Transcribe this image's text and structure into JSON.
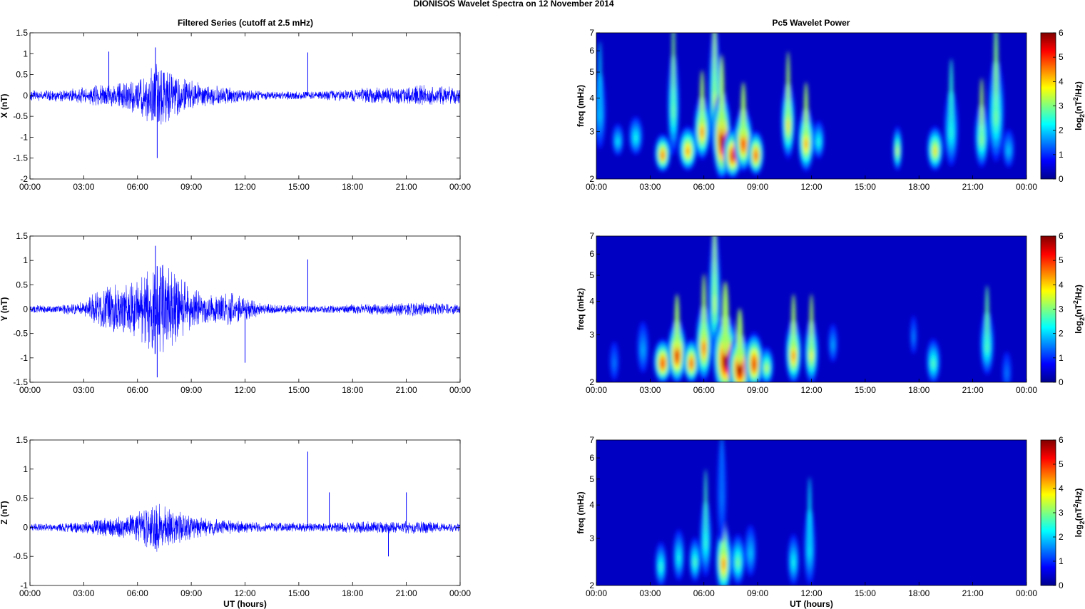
{
  "figure": {
    "title": "DIONISOS Wavelet Spectra on 12 November  2014",
    "left_title": "Filtered Series (cutoff at 2.5 mHz)",
    "right_title": "Pc5 Wavelet Power"
  },
  "chart_data": [
    {
      "type": "line",
      "title": "Filtered Series (cutoff at 2.5 mHz)",
      "ylabel": "X (nT)",
      "xlabel": "",
      "xticklabels": [
        "00:00",
        "03:00",
        "06:00",
        "09:00",
        "12:00",
        "15:00",
        "18:00",
        "21:00",
        "00:00"
      ],
      "xlim_hours": [
        0,
        24
      ],
      "ylim": [
        -2,
        1.5
      ],
      "yticks": [
        -2,
        -1.5,
        -1,
        -0.5,
        0,
        0.5,
        1,
        1.5
      ],
      "color": "#0000ff",
      "series": [
        {
          "x_hours": [
            0,
            1,
            2,
            3,
            4,
            5,
            6,
            7,
            8,
            9,
            10,
            11,
            12,
            13,
            14,
            15,
            16,
            17,
            18,
            19,
            20,
            21,
            22,
            23,
            24
          ],
          "amplitude": [
            0.12,
            0.14,
            0.15,
            0.2,
            0.3,
            0.3,
            0.45,
            0.8,
            0.55,
            0.35,
            0.25,
            0.2,
            0.15,
            0.1,
            0.1,
            0.1,
            0.1,
            0.12,
            0.15,
            0.2,
            0.18,
            0.22,
            0.25,
            0.22,
            0.2
          ]
        }
      ],
      "annotations": [
        {
          "x_hour": 7.1,
          "min": -1.5
        },
        {
          "x_hour": 7.0,
          "max": 1.15
        },
        {
          "x_hour": 15.5,
          "max": 1.03
        },
        {
          "x_hour": 4.4,
          "max": 1.05
        }
      ]
    },
    {
      "type": "line",
      "ylabel": "Y (nT)",
      "xlabel": "",
      "xticklabels": [
        "00:00",
        "03:00",
        "06:00",
        "09:00",
        "12:00",
        "15:00",
        "18:00",
        "21:00",
        "00:00"
      ],
      "xlim_hours": [
        0,
        24
      ],
      "ylim": [
        -1.5,
        1.5
      ],
      "yticks": [
        -1.5,
        -1,
        -0.5,
        0,
        0.5,
        1,
        1.5
      ],
      "color": "#0000ff",
      "series": [
        {
          "x_hours": [
            0,
            1,
            2,
            3,
            4,
            5,
            6,
            7,
            8,
            9,
            10,
            11,
            12,
            13,
            14,
            15,
            16,
            17,
            18,
            19,
            20,
            21,
            22,
            23,
            24
          ],
          "amplitude": [
            0.08,
            0.08,
            0.1,
            0.15,
            0.45,
            0.5,
            0.6,
            1.0,
            0.8,
            0.45,
            0.3,
            0.35,
            0.25,
            0.12,
            0.1,
            0.08,
            0.08,
            0.08,
            0.1,
            0.12,
            0.12,
            0.15,
            0.14,
            0.12,
            0.1
          ]
        }
      ],
      "annotations": [
        {
          "x_hour": 7.1,
          "min": -1.4
        },
        {
          "x_hour": 7.0,
          "max": 1.3
        },
        {
          "x_hour": 15.5,
          "max": 1.02
        },
        {
          "x_hour": 12.0,
          "min": -1.1
        }
      ]
    },
    {
      "type": "line",
      "ylabel": "Z (nT)",
      "xlabel": "UT (hours)",
      "xticklabels": [
        "00:00",
        "03:00",
        "06:00",
        "09:00",
        "12:00",
        "15:00",
        "18:00",
        "21:00",
        "00:00"
      ],
      "xlim_hours": [
        0,
        24
      ],
      "ylim": [
        -1,
        1.5
      ],
      "yticks": [
        -1,
        -0.5,
        0,
        0.5,
        1,
        1.5
      ],
      "color": "#0000ff",
      "series": [
        {
          "x_hours": [
            0,
            1,
            2,
            3,
            4,
            5,
            6,
            7,
            8,
            9,
            10,
            11,
            12,
            13,
            14,
            15,
            16,
            17,
            18,
            19,
            20,
            21,
            22,
            23,
            24
          ],
          "amplitude": [
            0.06,
            0.07,
            0.08,
            0.1,
            0.15,
            0.2,
            0.25,
            0.45,
            0.3,
            0.2,
            0.15,
            0.12,
            0.1,
            0.08,
            0.08,
            0.08,
            0.08,
            0.08,
            0.1,
            0.1,
            0.1,
            0.12,
            0.1,
            0.08,
            0.08
          ]
        }
      ],
      "annotations": [
        {
          "x_hour": 15.5,
          "max": 1.3
        },
        {
          "x_hour": 16.7,
          "max": 0.6
        },
        {
          "x_hour": 21.0,
          "max": 0.6
        },
        {
          "x_hour": 20.0,
          "min": -0.5
        }
      ]
    },
    {
      "type": "heatmap",
      "title": "Pc5 Wavelet Power",
      "ylabel": "freq (mHz)",
      "xlabel": "",
      "xticklabels": [
        "00:00",
        "03:00",
        "06:00",
        "09:00",
        "12:00",
        "15:00",
        "18:00",
        "21:00",
        "00:00"
      ],
      "xlim_hours": [
        0,
        24
      ],
      "ylim_mhz": [
        2,
        7
      ],
      "yscale": "log",
      "yticks": [
        2,
        3,
        4,
        5,
        6,
        7
      ],
      "colorbar": {
        "label": "log2(nT2/Hz)",
        "range": [
          0,
          6
        ],
        "ticks": [
          0,
          1,
          2,
          3,
          4,
          5,
          6
        ],
        "colormap": "jet"
      },
      "regions": [
        {
          "t": 0.2,
          "f": 3.6,
          "w": 0.25,
          "h": 0.6,
          "v": 2.0
        },
        {
          "t": 1.2,
          "f": 2.8,
          "w": 0.25,
          "h": 0.25,
          "v": 2.2
        },
        {
          "t": 2.2,
          "f": 2.9,
          "w": 0.3,
          "h": 0.3,
          "v": 2.4
        },
        {
          "t": 3.7,
          "f": 2.5,
          "w": 0.35,
          "h": 0.3,
          "v": 4.8
        },
        {
          "t": 4.3,
          "f": 3.8,
          "w": 0.25,
          "h": 0.8,
          "v": 3.0
        },
        {
          "t": 5.1,
          "f": 2.6,
          "w": 0.4,
          "h": 0.35,
          "v": 4.5
        },
        {
          "t": 5.9,
          "f": 3.1,
          "w": 0.35,
          "h": 0.5,
          "v": 4.6
        },
        {
          "t": 6.6,
          "f": 4.2,
          "w": 0.25,
          "h": 1.0,
          "v": 3.5
        },
        {
          "t": 7.0,
          "f": 2.9,
          "w": 0.4,
          "h": 0.7,
          "v": 6.0
        },
        {
          "t": 7.6,
          "f": 2.5,
          "w": 0.4,
          "h": 0.4,
          "v": 5.5
        },
        {
          "t": 8.2,
          "f": 2.8,
          "w": 0.4,
          "h": 0.5,
          "v": 5.2
        },
        {
          "t": 8.9,
          "f": 2.5,
          "w": 0.35,
          "h": 0.35,
          "v": 5.0
        },
        {
          "t": 10.7,
          "f": 3.3,
          "w": 0.3,
          "h": 0.6,
          "v": 4.0
        },
        {
          "t": 11.7,
          "f": 2.8,
          "w": 0.35,
          "h": 0.5,
          "v": 4.4
        },
        {
          "t": 12.4,
          "f": 2.8,
          "w": 0.25,
          "h": 0.3,
          "v": 2.5
        },
        {
          "t": 16.8,
          "f": 2.6,
          "w": 0.2,
          "h": 0.35,
          "v": 3.6
        },
        {
          "t": 18.9,
          "f": 2.6,
          "w": 0.35,
          "h": 0.35,
          "v": 4.0
        },
        {
          "t": 19.8,
          "f": 3.1,
          "w": 0.3,
          "h": 0.6,
          "v": 2.5
        },
        {
          "t": 21.5,
          "f": 2.9,
          "w": 0.3,
          "h": 0.5,
          "v": 3.2
        },
        {
          "t": 22.3,
          "f": 3.6,
          "w": 0.35,
          "h": 0.8,
          "v": 3.0
        },
        {
          "t": 23.0,
          "f": 2.6,
          "w": 0.25,
          "h": 0.3,
          "v": 2.0
        }
      ]
    },
    {
      "type": "heatmap",
      "ylabel": "freq (mHz)",
      "xlabel": "",
      "xticklabels": [
        "00:00",
        "03:00",
        "06:00",
        "09:00",
        "12:00",
        "15:00",
        "18:00",
        "21:00",
        "00:00"
      ],
      "xlim_hours": [
        0,
        24
      ],
      "ylim_mhz": [
        2,
        7
      ],
      "yscale": "log",
      "yticks": [
        2,
        3,
        4,
        5,
        6,
        7
      ],
      "colorbar": {
        "label": "log2(nT2/Hz)",
        "range": [
          0,
          6
        ],
        "ticks": [
          0,
          1,
          2,
          3,
          4,
          5,
          6
        ],
        "colormap": "jet"
      },
      "regions": [
        {
          "t": 1.0,
          "f": 2.4,
          "w": 0.2,
          "h": 0.3,
          "v": 1.5
        },
        {
          "t": 2.6,
          "f": 2.7,
          "w": 0.25,
          "h": 0.4,
          "v": 1.8
        },
        {
          "t": 3.7,
          "f": 2.4,
          "w": 0.4,
          "h": 0.35,
          "v": 5.2
        },
        {
          "t": 4.5,
          "f": 2.6,
          "w": 0.4,
          "h": 0.5,
          "v": 5.5
        },
        {
          "t": 5.3,
          "f": 2.4,
          "w": 0.35,
          "h": 0.35,
          "v": 5.0
        },
        {
          "t": 6.0,
          "f": 2.8,
          "w": 0.35,
          "h": 0.6,
          "v": 4.8
        },
        {
          "t": 6.6,
          "f": 4.2,
          "w": 0.25,
          "h": 1.0,
          "v": 3.5
        },
        {
          "t": 7.2,
          "f": 2.5,
          "w": 0.55,
          "h": 0.65,
          "v": 6.0
        },
        {
          "t": 8.0,
          "f": 2.3,
          "w": 0.5,
          "h": 0.5,
          "v": 6.0
        },
        {
          "t": 8.8,
          "f": 2.4,
          "w": 0.4,
          "h": 0.45,
          "v": 5.4
        },
        {
          "t": 9.5,
          "f": 2.3,
          "w": 0.3,
          "h": 0.3,
          "v": 3.5
        },
        {
          "t": 11.0,
          "f": 2.6,
          "w": 0.35,
          "h": 0.5,
          "v": 4.6
        },
        {
          "t": 12.0,
          "f": 2.6,
          "w": 0.3,
          "h": 0.5,
          "v": 3.8
        },
        {
          "t": 13.2,
          "f": 2.8,
          "w": 0.2,
          "h": 0.3,
          "v": 1.8
        },
        {
          "t": 17.7,
          "f": 3.0,
          "w": 0.15,
          "h": 0.3,
          "v": 1.6
        },
        {
          "t": 18.8,
          "f": 2.4,
          "w": 0.3,
          "h": 0.35,
          "v": 2.8
        },
        {
          "t": 21.8,
          "f": 2.8,
          "w": 0.3,
          "h": 0.5,
          "v": 2.8
        },
        {
          "t": 22.9,
          "f": 2.2,
          "w": 0.2,
          "h": 0.3,
          "v": 1.5
        }
      ]
    },
    {
      "type": "heatmap",
      "ylabel": "freq (mHz)",
      "xlabel": "UT (hours)",
      "xticklabels": [
        "00:00",
        "03:00",
        "06:00",
        "09:00",
        "12:00",
        "15:00",
        "18:00",
        "21:00",
        "00:00"
      ],
      "xlim_hours": [
        0,
        24
      ],
      "ylim_mhz": [
        2,
        7
      ],
      "yscale": "log",
      "yticks": [
        2,
        3,
        4,
        5,
        6,
        7
      ],
      "colorbar": {
        "label": "log2(nT2/Hz)",
        "range": [
          0,
          6
        ],
        "ticks": [
          0,
          1,
          2,
          3,
          4,
          5,
          6
        ],
        "colormap": "jet"
      },
      "regions": [
        {
          "t": 3.6,
          "f": 2.4,
          "w": 0.25,
          "h": 0.35,
          "v": 2.6
        },
        {
          "t": 4.6,
          "f": 2.6,
          "w": 0.25,
          "h": 0.4,
          "v": 2.4
        },
        {
          "t": 5.5,
          "f": 2.5,
          "w": 0.25,
          "h": 0.35,
          "v": 2.8
        },
        {
          "t": 6.1,
          "f": 3.0,
          "w": 0.25,
          "h": 0.6,
          "v": 2.6
        },
        {
          "t": 7.1,
          "f": 2.5,
          "w": 0.35,
          "h": 0.55,
          "v": 4.6
        },
        {
          "t": 7.0,
          "f": 4.5,
          "w": 0.2,
          "h": 0.8,
          "v": 1.5
        },
        {
          "t": 7.9,
          "f": 2.5,
          "w": 0.3,
          "h": 0.4,
          "v": 3.0
        },
        {
          "t": 8.6,
          "f": 2.7,
          "w": 0.25,
          "h": 0.4,
          "v": 2.0
        },
        {
          "t": 11.0,
          "f": 2.5,
          "w": 0.25,
          "h": 0.4,
          "v": 2.4
        },
        {
          "t": 11.9,
          "f": 2.8,
          "w": 0.25,
          "h": 0.6,
          "v": 2.2
        }
      ]
    }
  ]
}
